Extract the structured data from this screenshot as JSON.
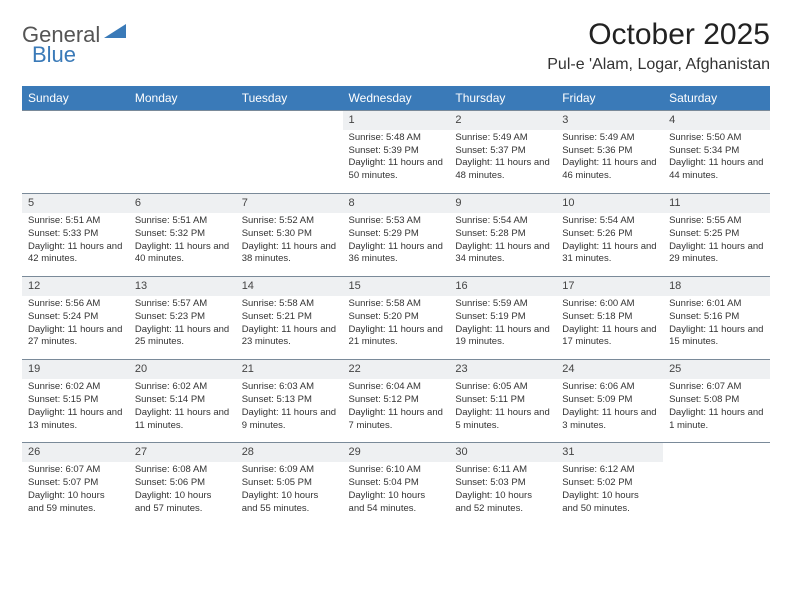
{
  "logo": {
    "part1": "General",
    "part2": "Blue",
    "triangle_color": "#3a7ab8"
  },
  "title": "October 2025",
  "location": "Pul-e 'Alam, Logar, Afghanistan",
  "header_bg": "#3a7ab8",
  "header_fg": "#ffffff",
  "daynum_bg": "#eef0f2",
  "border_color": "#7a8a99",
  "day_headers": [
    "Sunday",
    "Monday",
    "Tuesday",
    "Wednesday",
    "Thursday",
    "Friday",
    "Saturday"
  ],
  "weeks": [
    [
      null,
      null,
      null,
      {
        "n": "1",
        "sr": "5:48 AM",
        "ss": "5:39 PM",
        "dl": "11 hours and 50 minutes."
      },
      {
        "n": "2",
        "sr": "5:49 AM",
        "ss": "5:37 PM",
        "dl": "11 hours and 48 minutes."
      },
      {
        "n": "3",
        "sr": "5:49 AM",
        "ss": "5:36 PM",
        "dl": "11 hours and 46 minutes."
      },
      {
        "n": "4",
        "sr": "5:50 AM",
        "ss": "5:34 PM",
        "dl": "11 hours and 44 minutes."
      }
    ],
    [
      {
        "n": "5",
        "sr": "5:51 AM",
        "ss": "5:33 PM",
        "dl": "11 hours and 42 minutes."
      },
      {
        "n": "6",
        "sr": "5:51 AM",
        "ss": "5:32 PM",
        "dl": "11 hours and 40 minutes."
      },
      {
        "n": "7",
        "sr": "5:52 AM",
        "ss": "5:30 PM",
        "dl": "11 hours and 38 minutes."
      },
      {
        "n": "8",
        "sr": "5:53 AM",
        "ss": "5:29 PM",
        "dl": "11 hours and 36 minutes."
      },
      {
        "n": "9",
        "sr": "5:54 AM",
        "ss": "5:28 PM",
        "dl": "11 hours and 34 minutes."
      },
      {
        "n": "10",
        "sr": "5:54 AM",
        "ss": "5:26 PM",
        "dl": "11 hours and 31 minutes."
      },
      {
        "n": "11",
        "sr": "5:55 AM",
        "ss": "5:25 PM",
        "dl": "11 hours and 29 minutes."
      }
    ],
    [
      {
        "n": "12",
        "sr": "5:56 AM",
        "ss": "5:24 PM",
        "dl": "11 hours and 27 minutes."
      },
      {
        "n": "13",
        "sr": "5:57 AM",
        "ss": "5:23 PM",
        "dl": "11 hours and 25 minutes."
      },
      {
        "n": "14",
        "sr": "5:58 AM",
        "ss": "5:21 PM",
        "dl": "11 hours and 23 minutes."
      },
      {
        "n": "15",
        "sr": "5:58 AM",
        "ss": "5:20 PM",
        "dl": "11 hours and 21 minutes."
      },
      {
        "n": "16",
        "sr": "5:59 AM",
        "ss": "5:19 PM",
        "dl": "11 hours and 19 minutes."
      },
      {
        "n": "17",
        "sr": "6:00 AM",
        "ss": "5:18 PM",
        "dl": "11 hours and 17 minutes."
      },
      {
        "n": "18",
        "sr": "6:01 AM",
        "ss": "5:16 PM",
        "dl": "11 hours and 15 minutes."
      }
    ],
    [
      {
        "n": "19",
        "sr": "6:02 AM",
        "ss": "5:15 PM",
        "dl": "11 hours and 13 minutes."
      },
      {
        "n": "20",
        "sr": "6:02 AM",
        "ss": "5:14 PM",
        "dl": "11 hours and 11 minutes."
      },
      {
        "n": "21",
        "sr": "6:03 AM",
        "ss": "5:13 PM",
        "dl": "11 hours and 9 minutes."
      },
      {
        "n": "22",
        "sr": "6:04 AM",
        "ss": "5:12 PM",
        "dl": "11 hours and 7 minutes."
      },
      {
        "n": "23",
        "sr": "6:05 AM",
        "ss": "5:11 PM",
        "dl": "11 hours and 5 minutes."
      },
      {
        "n": "24",
        "sr": "6:06 AM",
        "ss": "5:09 PM",
        "dl": "11 hours and 3 minutes."
      },
      {
        "n": "25",
        "sr": "6:07 AM",
        "ss": "5:08 PM",
        "dl": "11 hours and 1 minute."
      }
    ],
    [
      {
        "n": "26",
        "sr": "6:07 AM",
        "ss": "5:07 PM",
        "dl": "10 hours and 59 minutes."
      },
      {
        "n": "27",
        "sr": "6:08 AM",
        "ss": "5:06 PM",
        "dl": "10 hours and 57 minutes."
      },
      {
        "n": "28",
        "sr": "6:09 AM",
        "ss": "5:05 PM",
        "dl": "10 hours and 55 minutes."
      },
      {
        "n": "29",
        "sr": "6:10 AM",
        "ss": "5:04 PM",
        "dl": "10 hours and 54 minutes."
      },
      {
        "n": "30",
        "sr": "6:11 AM",
        "ss": "5:03 PM",
        "dl": "10 hours and 52 minutes."
      },
      {
        "n": "31",
        "sr": "6:12 AM",
        "ss": "5:02 PM",
        "dl": "10 hours and 50 minutes."
      },
      null
    ]
  ],
  "labels": {
    "sunrise": "Sunrise: ",
    "sunset": "Sunset: ",
    "daylight": "Daylight: "
  }
}
